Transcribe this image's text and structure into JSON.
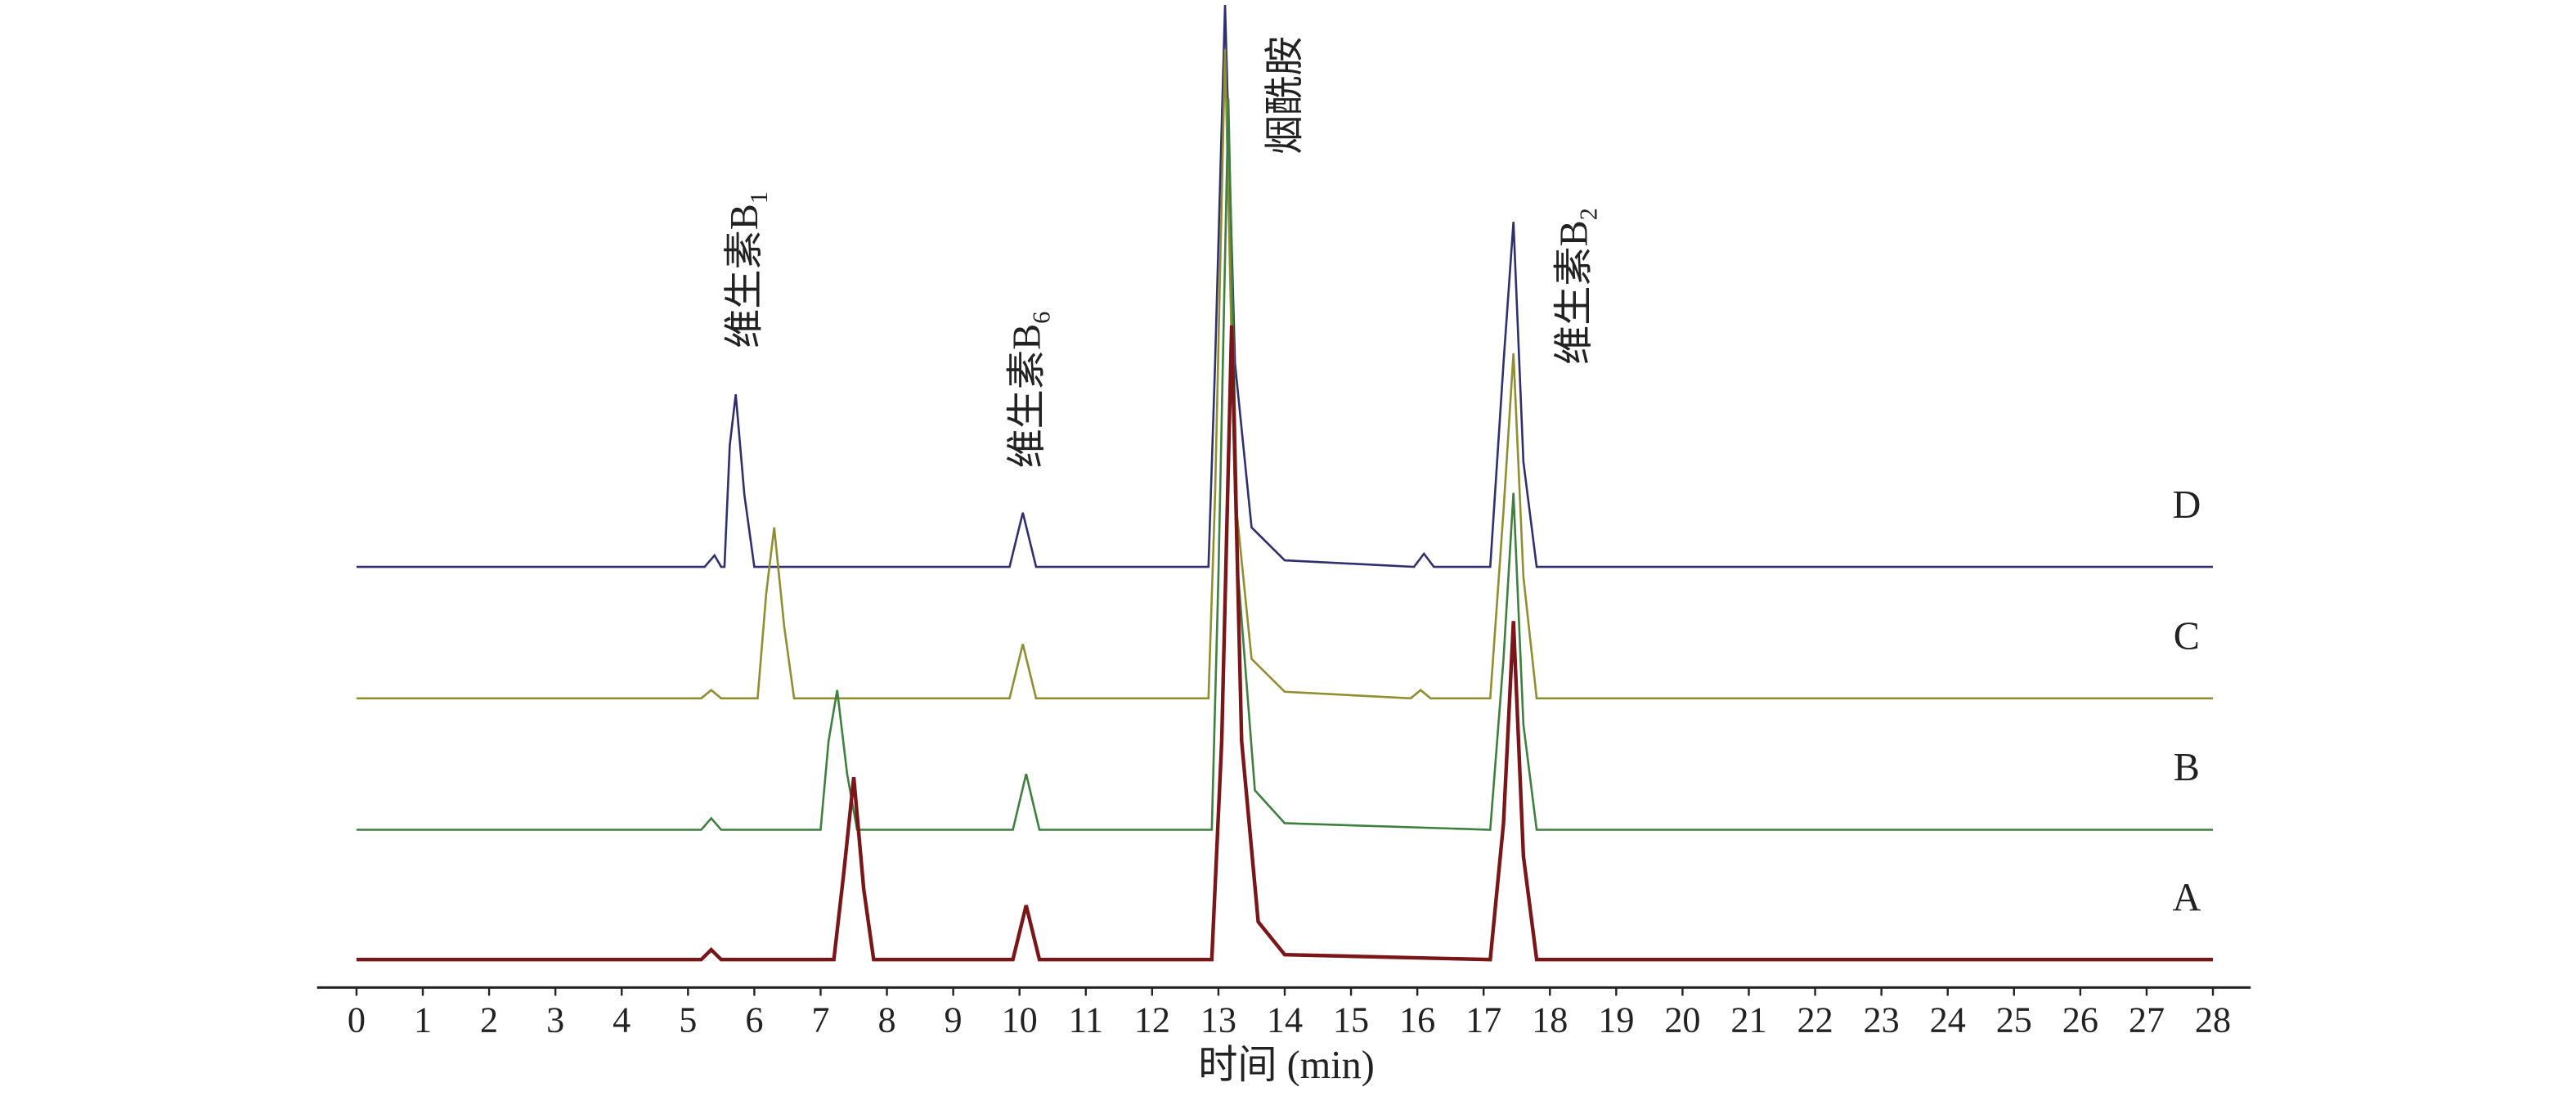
{
  "chart_data": {
    "type": "line",
    "x_label": "时间 (min)",
    "xlim": [
      0,
      28
    ],
    "xticks": [
      0,
      1,
      2,
      3,
      4,
      5,
      6,
      7,
      8,
      9,
      10,
      11,
      12,
      13,
      14,
      15,
      16,
      17,
      18,
      19,
      20,
      21,
      22,
      23,
      24,
      25,
      26,
      27,
      28
    ],
    "ylim": [
      0,
      600
    ],
    "annotations": [
      {
        "text": "维生素B",
        "sub": "1"
      },
      {
        "text": "维生素B",
        "sub": "6"
      },
      {
        "text": "烟酰胺"
      },
      {
        "text": "维生素B",
        "sub": "2"
      }
    ],
    "series": [
      {
        "name": "A",
        "color": "#7a1518",
        "x": [
          0,
          5.2,
          5.35,
          5.5,
          7.2,
          7.35,
          7.5,
          7.65,
          7.8,
          9.9,
          10.1,
          10.3,
          12.9,
          13.05,
          13.2,
          13.35,
          13.6,
          14,
          17.1,
          17.3,
          17.45,
          17.6,
          17.8,
          28
        ],
        "values": [
          17,
          17,
          23,
          17,
          17,
          70,
          128,
          60,
          17,
          17,
          50,
          17,
          17,
          150,
          403,
          150,
          40,
          20,
          17,
          100,
          223,
          80,
          17,
          17
        ]
      },
      {
        "name": "B",
        "color": "#3f7f3f",
        "x": [
          0,
          5.2,
          5.35,
          5.5,
          7.0,
          7.12,
          7.25,
          7.4,
          7.55,
          9.9,
          10.1,
          10.3,
          12.9,
          13.0,
          13.15,
          13.3,
          13.55,
          14,
          17.1,
          17.3,
          17.45,
          17.6,
          17.8,
          28
        ],
        "values": [
          96,
          96,
          103,
          96,
          96,
          150,
          181,
          130,
          96,
          96,
          130,
          96,
          96,
          250,
          541,
          250,
          120,
          100,
          96,
          200,
          301,
          160,
          96,
          96
        ]
      },
      {
        "name": "C",
        "color": "#8f8f30",
        "x": [
          0,
          5.2,
          5.35,
          5.5,
          6.05,
          6.18,
          6.3,
          6.45,
          6.6,
          9.85,
          10.05,
          10.25,
          12.85,
          12.95,
          13.1,
          13.25,
          13.5,
          14,
          15.9,
          16.05,
          16.2,
          17.1,
          17.3,
          17.45,
          17.6,
          17.8,
          28
        ],
        "values": [
          176,
          176,
          181,
          176,
          176,
          240,
          280,
          220,
          176,
          176,
          209,
          176,
          176,
          300,
          571,
          300,
          200,
          180,
          176,
          181,
          176,
          176,
          290,
          386,
          250,
          176,
          176
        ]
      },
      {
        "name": "D",
        "color": "#30306f",
        "x": [
          0,
          5.25,
          5.4,
          5.5,
          5.55,
          5.63,
          5.72,
          5.85,
          6.0,
          9.85,
          10.05,
          10.25,
          12.85,
          12.95,
          13.1,
          13.25,
          13.5,
          14,
          15.95,
          16.1,
          16.25,
          17.1,
          17.3,
          17.45,
          17.6,
          17.8,
          28
        ],
        "values": [
          256,
          256,
          263,
          256,
          256,
          330,
          361,
          300,
          256,
          256,
          289,
          256,
          256,
          380,
          598,
          380,
          280,
          260,
          256,
          264,
          256,
          256,
          380,
          466,
          320,
          256,
          256
        ]
      }
    ]
  }
}
